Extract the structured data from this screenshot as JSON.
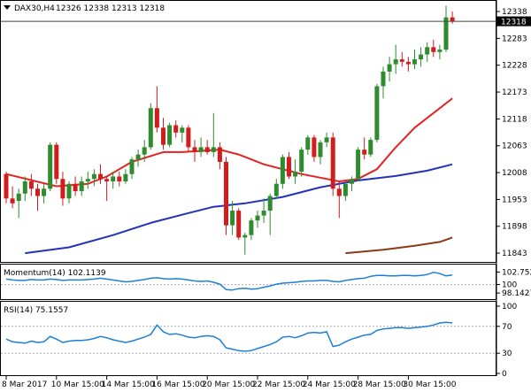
{
  "header": {
    "symbol": "DAX30,H4",
    "ohlc": "12326 12338 12313 12318",
    "last_price_tag": "12318"
  },
  "colors": {
    "bull": "#2e8b2e",
    "bear": "#d11d1d",
    "sma20": "#e52222",
    "sma100": "#2233bb",
    "sma200": "#8b3a1a",
    "momentum": "#1e7fd6",
    "rsi": "#1e7fd6",
    "grid": "#cccccc",
    "level_line": "#aaaaaa"
  },
  "chart_data": [
    {
      "type": "candlestick",
      "title": "DAX30,H4",
      "ylim": [
        11825,
        12358
      ],
      "y_ticks": [
        "12338",
        "12283",
        "12228",
        "12173",
        "12118",
        "12063",
        "12008",
        "11953",
        "11898",
        "11843"
      ],
      "x_ticks": [
        "8 Mar 2017",
        "10 Mar 15:00",
        "14 Mar 15:00",
        "16 Mar 15:00",
        "20 Mar 15:00",
        "22 Mar 15:00",
        "24 Mar 15:00",
        "28 Mar 15:00",
        "30 Mar 15:00"
      ],
      "candles": [
        [
          12005,
          12010,
          11945,
          11955
        ],
        [
          11955,
          11980,
          11935,
          11945
        ],
        [
          11950,
          11975,
          11915,
          11965
        ],
        [
          11965,
          12000,
          11950,
          11990
        ],
        [
          11990,
          12005,
          11960,
          11975
        ],
        [
          11975,
          11985,
          11930,
          11960
        ],
        [
          11960,
          11985,
          11945,
          11975
        ],
        [
          11975,
          12070,
          11970,
          12065
        ],
        [
          12065,
          12070,
          11985,
          11995
        ],
        [
          11995,
          12010,
          11940,
          11955
        ],
        [
          11955,
          11990,
          11945,
          11985
        ],
        [
          11985,
          12000,
          11960,
          11970
        ],
        [
          11970,
          12000,
          11960,
          11990
        ],
        [
          11990,
          12010,
          11975,
          11995
        ],
        [
          11995,
          12015,
          11980,
          12005
        ],
        [
          12005,
          12025,
          11985,
          11995
        ],
        [
          11995,
          12000,
          11950,
          11990
        ],
        [
          11990,
          12010,
          11975,
          12000
        ],
        [
          12000,
          12010,
          11980,
          11990
        ],
        [
          11990,
          12015,
          11985,
          12005
        ],
        [
          12005,
          12040,
          11995,
          12035
        ],
        [
          12035,
          12055,
          12020,
          12045
        ],
        [
          12045,
          12075,
          12030,
          12060
        ],
        [
          12060,
          12150,
          12055,
          12140
        ],
        [
          12140,
          12185,
          12090,
          12100
        ],
        [
          12100,
          12120,
          12055,
          12065
        ],
        [
          12065,
          12110,
          12060,
          12105
        ],
        [
          12105,
          12115,
          12080,
          12090
        ],
        [
          12090,
          12105,
          12070,
          12100
        ],
        [
          12100,
          12105,
          12050,
          12060
        ],
        [
          12060,
          12075,
          12030,
          12050
        ],
        [
          12050,
          12080,
          12040,
          12060
        ],
        [
          12060,
          12075,
          12045,
          12050
        ],
        [
          12050,
          12130,
          12040,
          12060
        ],
        [
          12060,
          12070,
          12015,
          12030
        ],
        [
          12030,
          12040,
          11880,
          11900
        ],
        [
          11900,
          11950,
          11880,
          11930
        ],
        [
          11930,
          11935,
          11870,
          11875
        ],
        [
          11875,
          11885,
          11840,
          11880
        ],
        [
          11880,
          11915,
          11870,
          11910
        ],
        [
          11910,
          11930,
          11895,
          11920
        ],
        [
          11920,
          11955,
          11905,
          11930
        ],
        [
          11930,
          11965,
          11880,
          11960
        ],
        [
          11960,
          11995,
          11955,
          11985
        ],
        [
          11985,
          12045,
          11975,
          12040
        ],
        [
          12040,
          12050,
          11995,
          12000
        ],
        [
          12000,
          12035,
          11985,
          12010
        ],
        [
          12010,
          12060,
          12000,
          12055
        ],
        [
          12055,
          12085,
          12045,
          12080
        ],
        [
          12080,
          12085,
          12030,
          12040
        ],
        [
          12040,
          12075,
          12025,
          12070
        ],
        [
          12070,
          12090,
          12060,
          12080
        ],
        [
          12080,
          12090,
          11960,
          11975
        ],
        [
          11975,
          11990,
          11915,
          11960
        ],
        [
          11960,
          11990,
          11950,
          11985
        ],
        [
          11985,
          12000,
          11970,
          11995
        ],
        [
          11995,
          12060,
          11990,
          12055
        ],
        [
          12055,
          12080,
          12035,
          12045
        ],
        [
          12045,
          12080,
          12040,
          12075
        ],
        [
          12075,
          12190,
          12070,
          12185
        ],
        [
          12185,
          12225,
          12160,
          12215
        ],
        [
          12215,
          12245,
          12195,
          12230
        ],
        [
          12230,
          12270,
          12210,
          12240
        ],
        [
          12240,
          12255,
          12225,
          12235
        ],
        [
          12235,
          12245,
          12215,
          12230
        ],
        [
          12230,
          12260,
          12220,
          12240
        ],
        [
          12240,
          12265,
          12225,
          12250
        ],
        [
          12250,
          12275,
          12235,
          12265
        ],
        [
          12265,
          12280,
          12245,
          12255
        ],
        [
          12255,
          12270,
          12240,
          12260
        ],
        [
          12260,
          12350,
          12255,
          12326
        ],
        [
          12326,
          12338,
          12313,
          12318
        ]
      ],
      "sma20": [
        [
          0,
          12005
        ],
        [
          8,
          11980
        ],
        [
          13,
          11985
        ],
        [
          16,
          12000
        ],
        [
          20,
          12030
        ],
        [
          25,
          12050
        ],
        [
          28,
          12050
        ],
        [
          34,
          12055
        ],
        [
          37,
          12045
        ],
        [
          41,
          12025
        ],
        [
          44,
          12015
        ],
        [
          47,
          12005
        ],
        [
          51,
          11995
        ],
        [
          53,
          11990
        ],
        [
          56,
          11995
        ],
        [
          59,
          12015
        ],
        [
          62,
          12060
        ],
        [
          65,
          12100
        ],
        [
          68,
          12130
        ],
        [
          71,
          12160
        ]
      ],
      "sma100": [
        [
          3,
          11843
        ],
        [
          10,
          11855
        ],
        [
          17,
          11880
        ],
        [
          23,
          11905
        ],
        [
          29,
          11925
        ],
        [
          33,
          11938
        ],
        [
          38,
          11945
        ],
        [
          44,
          11958
        ],
        [
          50,
          11978
        ],
        [
          56,
          11992
        ],
        [
          62,
          12001
        ],
        [
          67,
          12012
        ],
        [
          71,
          12025
        ]
      ],
      "sma200": [
        [
          54,
          11843
        ],
        [
          60,
          11850
        ],
        [
          65,
          11858
        ],
        [
          69,
          11866
        ],
        [
          71,
          11875
        ]
      ]
    },
    {
      "type": "line",
      "title": "Momentum(14) 102.1139",
      "ylim": [
        96.8,
        104.2
      ],
      "y_ticks": [
        "102.7526",
        "100",
        "98.1427"
      ],
      "level": 100,
      "values": [
        101.2,
        101.0,
        100.9,
        100.9,
        101.1,
        101.0,
        101.0,
        101.2,
        101.1,
        100.9,
        101.0,
        101.0,
        101.0,
        101.1,
        101.2,
        101.4,
        101.2,
        101.0,
        100.8,
        100.6,
        100.7,
        100.9,
        101.1,
        101.4,
        101.5,
        101.3,
        101.2,
        101.3,
        101.2,
        101.0,
        100.8,
        100.7,
        100.8,
        100.5,
        100.1,
        98.9,
        98.8,
        99.1,
        99.2,
        99.0,
        99.1,
        99.4,
        99.7,
        100.1,
        100.3,
        100.4,
        100.5,
        100.7,
        100.8,
        100.8,
        100.9,
        100.9,
        100.7,
        100.6,
        100.9,
        101.1,
        101.3,
        101.4,
        101.8,
        102.0,
        102.0,
        101.9,
        101.9,
        102.0,
        102.0,
        101.9,
        102.0,
        102.2,
        102.7,
        102.4,
        101.9,
        102.1139
      ]
    },
    {
      "type": "line",
      "title": "RSI(14) 75.1557",
      "ylim": [
        0,
        100
      ],
      "y_ticks": [
        "100",
        "70",
        "30",
        "0"
      ],
      "levels": [
        70,
        30
      ],
      "values": [
        51,
        47,
        46,
        45,
        48,
        46,
        47,
        55,
        51,
        46,
        48,
        49,
        49,
        50,
        52,
        55,
        53,
        50,
        48,
        46,
        48,
        51,
        54,
        58,
        72,
        62,
        58,
        59,
        57,
        54,
        53,
        55,
        56,
        55,
        50,
        38,
        36,
        34,
        33,
        34,
        37,
        40,
        43,
        47,
        54,
        55,
        53,
        56,
        60,
        61,
        60,
        62,
        40,
        42,
        47,
        51,
        54,
        57,
        58,
        64,
        66,
        67,
        68,
        68,
        67,
        68,
        69,
        70,
        72,
        75,
        76,
        75.1557
      ]
    }
  ]
}
